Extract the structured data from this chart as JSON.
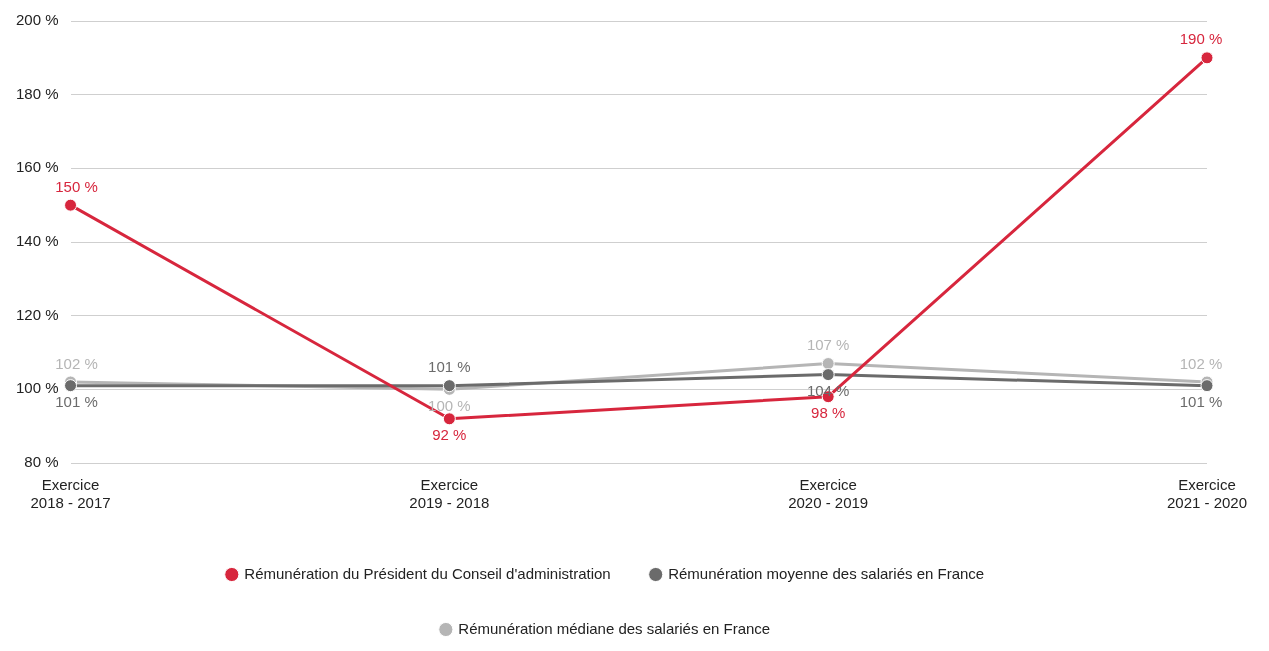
{
  "chart_data": {
    "type": "line",
    "categories": [
      "Exercice 2018 - 2017",
      "Exercice 2019 - 2018",
      "Exercice 2020 - 2019",
      "Exercice 2021 - 2020"
    ],
    "series": [
      {
        "name": "Rémunération du Président du Conseil d'administration",
        "color": "#d7263d",
        "values": [
          150,
          92,
          98,
          190
        ],
        "value_labels": [
          "150 %",
          "92 %",
          "98 %",
          "190 %"
        ]
      },
      {
        "name": "Rémunération moyenne des salariés en France",
        "color": "#6b6b6b",
        "values": [
          101,
          101,
          104,
          101
        ],
        "value_labels": [
          "101 %",
          "101 %",
          "104 %",
          "101 %"
        ]
      },
      {
        "name": "Rémunération médiane des salariés en France",
        "color": "#b5b5b5",
        "values": [
          102,
          100,
          107,
          102
        ],
        "value_labels": [
          "102 %",
          "100 %",
          "107 %",
          "102 %"
        ]
      }
    ],
    "ylim": [
      80,
      200
    ],
    "yticks": [
      {
        "value": 80,
        "label": "80 %"
      },
      {
        "value": 100,
        "label": "100 %"
      },
      {
        "value": 120,
        "label": "120 %"
      },
      {
        "value": 140,
        "label": "140 %"
      },
      {
        "value": 160,
        "label": "160 %"
      },
      {
        "value": 180,
        "label": "180 %"
      },
      {
        "value": 200,
        "label": "200 %"
      }
    ],
    "grid": "y",
    "legend": "bottom",
    "marker": "circle",
    "line_style": "solid"
  }
}
